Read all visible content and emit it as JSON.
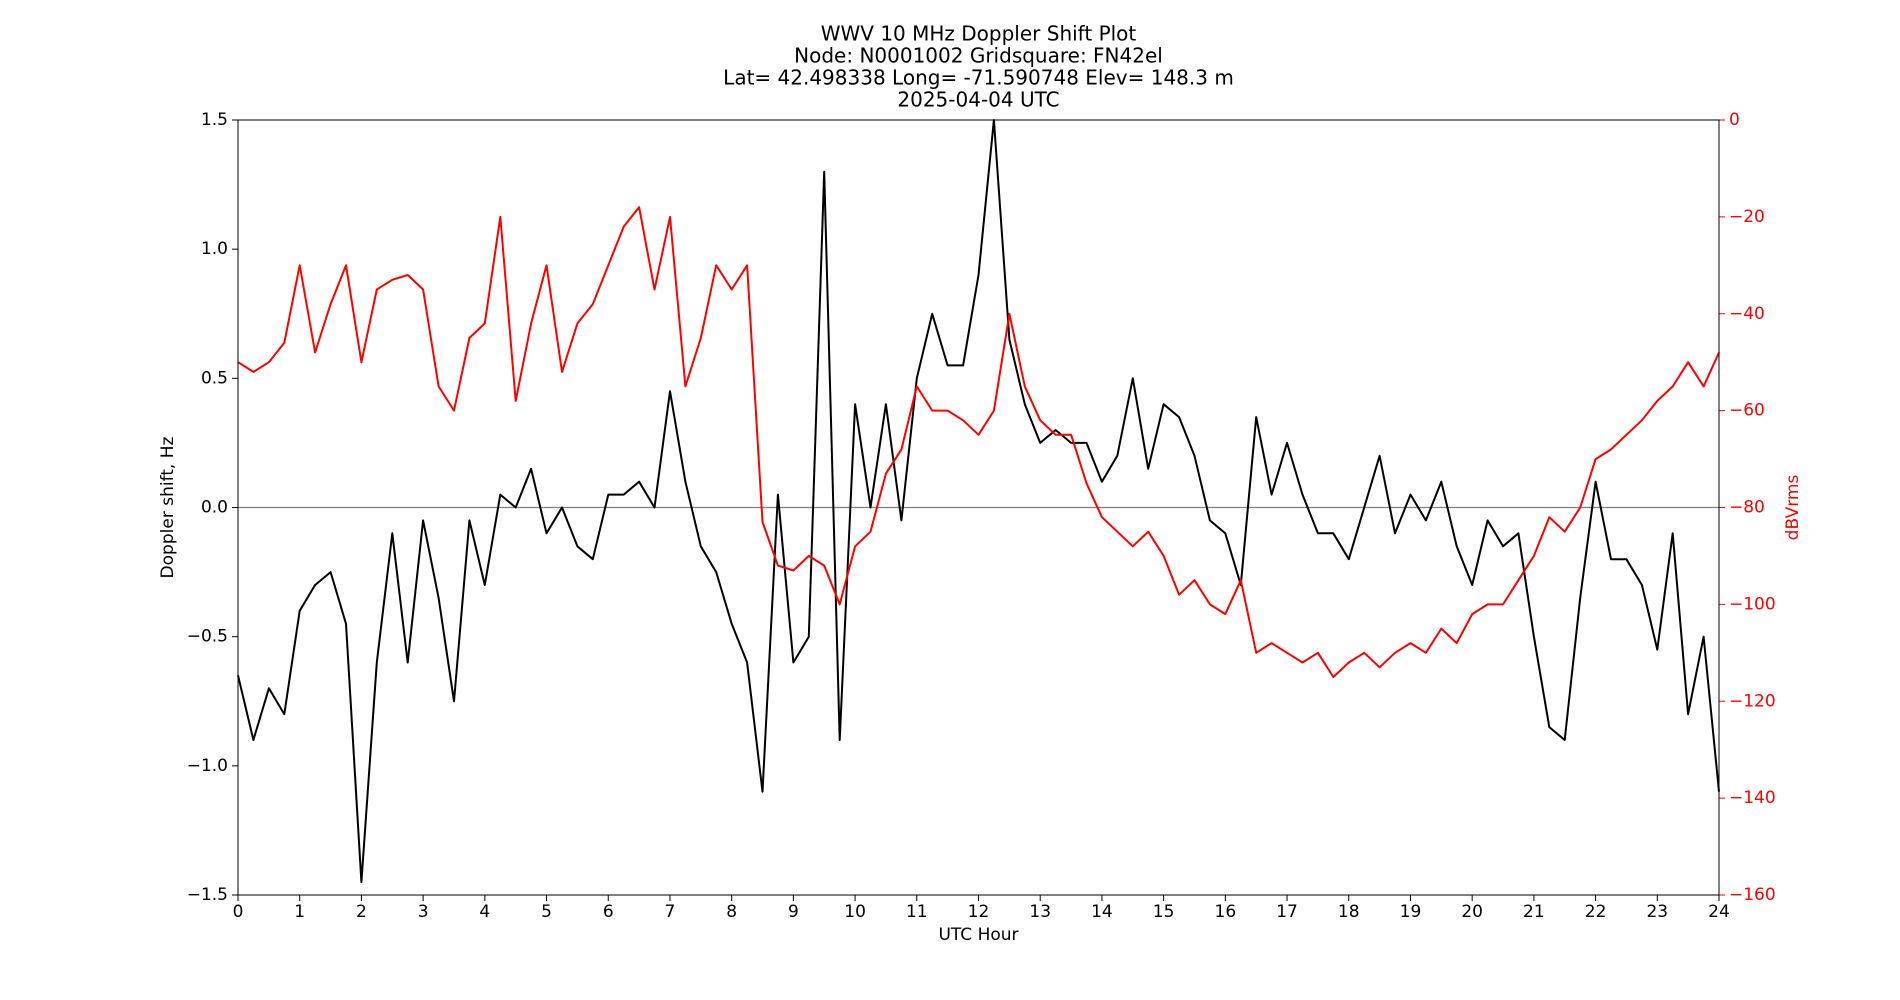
{
  "chart_data": {
    "type": "line",
    "title": [
      "WWV 10 MHz Doppler Shift Plot",
      "Node:  N0001002     Gridsquare:  FN42el",
      "Lat= 42.498338    Long= -71.590748    Elev= 148.3 m",
      "2025-04-04  UTC"
    ],
    "xlabel": "UTC Hour",
    "ylabel": "Doppler shift, Hz",
    "y2label": "dBVrms",
    "x": [
      0,
      0.25,
      0.5,
      0.75,
      1,
      1.25,
      1.5,
      1.75,
      2,
      2.25,
      2.5,
      2.75,
      3,
      3.25,
      3.5,
      3.75,
      4,
      4.25,
      4.5,
      4.75,
      5,
      5.25,
      5.5,
      5.75,
      6,
      6.25,
      6.5,
      6.75,
      7,
      7.25,
      7.5,
      7.75,
      8,
      8.25,
      8.5,
      8.75,
      9,
      9.25,
      9.5,
      9.75,
      10,
      10.25,
      10.5,
      10.75,
      11,
      11.25,
      11.5,
      11.75,
      12,
      12.25,
      12.5,
      12.75,
      13,
      13.25,
      13.5,
      13.75,
      14,
      14.25,
      14.5,
      14.75,
      15,
      15.25,
      15.5,
      15.75,
      16,
      16.25,
      16.5,
      16.75,
      17,
      17.25,
      17.5,
      17.75,
      18,
      18.25,
      18.5,
      18.75,
      19,
      19.25,
      19.5,
      19.75,
      20,
      20.25,
      20.5,
      20.75,
      21,
      21.25,
      21.5,
      21.75,
      22,
      22.25,
      22.5,
      22.75,
      23,
      23.25,
      23.5,
      23.75,
      24
    ],
    "series": [
      {
        "name": "Doppler shift",
        "color": "#000000",
        "values": [
          -0.65,
          -0.9,
          -0.7,
          -0.8,
          -0.4,
          -0.3,
          -0.25,
          -0.45,
          -1.45,
          -0.6,
          -0.1,
          -0.6,
          -0.05,
          -0.35,
          -0.75,
          -0.05,
          -0.3,
          0.05,
          0,
          0.15,
          -0.1,
          0,
          -0.15,
          -0.2,
          0.05,
          0.05,
          0.1,
          0,
          0.45,
          0.1,
          -0.15,
          -0.25,
          -0.45,
          -0.6,
          -1.1,
          0.05,
          -0.6,
          -0.5,
          1.3,
          -0.9,
          0.4,
          0,
          0.4,
          -0.05,
          0.5,
          0.75,
          0.55,
          0.55,
          0.9,
          1.5,
          0.65,
          0.4,
          0.25,
          0.3,
          0.25,
          0.25,
          0.1,
          0.2,
          0.5,
          0.15,
          0.4,
          0.35,
          0.2,
          -0.05,
          -0.1,
          -0.3,
          0.35,
          0.05,
          0.25,
          0.05,
          -0.1,
          -0.1,
          -0.2,
          0,
          0.2,
          -0.1,
          0.05,
          -0.05,
          0.1,
          -0.15,
          -0.3,
          -0.05,
          -0.15,
          -0.1,
          -0.5,
          -0.85,
          -0.9,
          -0.35,
          0.1,
          -0.2,
          -0.2,
          -0.3,
          -0.55,
          -0.1,
          -0.8,
          -0.5,
          -1.1
        ]
      },
      {
        "name": "dBVrms",
        "color": "#ff0000",
        "axis": "y2",
        "values": [
          -50,
          -52,
          -50,
          -46,
          -30,
          -48,
          -38,
          -30,
          -50,
          -35,
          -33,
          -32,
          -35,
          -55,
          -60,
          -45,
          -42,
          -20,
          -58,
          -42,
          -30,
          -52,
          -42,
          -38,
          -30,
          -22,
          -18,
          -35,
          -20,
          -55,
          -45,
          -30,
          -35,
          -30,
          -83,
          -92,
          -93,
          -90,
          -92,
          -100,
          -88,
          -85,
          -73,
          -68,
          -55,
          -60,
          -60,
          -62,
          -65,
          -60,
          -40,
          -55,
          -62,
          -65,
          -65,
          -75,
          -82,
          -85,
          -88,
          -85,
          -90,
          -98,
          -95,
          -100,
          -102,
          -95,
          -110,
          -108,
          -110,
          -112,
          -110,
          -115,
          -112,
          -110,
          -113,
          -110,
          -108,
          -110,
          -105,
          -108,
          -102,
          -100,
          -100,
          -95,
          -90,
          -82,
          -85,
          -80,
          -70,
          -68,
          -65,
          -62,
          -58,
          -55,
          -50,
          -55,
          -48
        ]
      }
    ],
    "xlim": [
      0,
      24
    ],
    "xticks": [
      0,
      1,
      2,
      3,
      4,
      5,
      6,
      7,
      8,
      9,
      10,
      11,
      12,
      13,
      14,
      15,
      16,
      17,
      18,
      19,
      20,
      21,
      22,
      23,
      24
    ],
    "ylim": [
      -1.5,
      1.5
    ],
    "yticks": [
      {
        "value": -1.5,
        "label": "−1.5"
      },
      {
        "value": -1,
        "label": "−1.0"
      },
      {
        "value": -0.5,
        "label": "−0.5"
      },
      {
        "value": 0,
        "label": "0.0"
      },
      0.5,
      {
        "value": 1,
        "label": "1.0"
      },
      1.5
    ],
    "y2lim": [
      -160,
      0
    ],
    "y2ticks": [
      {
        "value": -160,
        "label": "−160"
      },
      {
        "value": -140,
        "label": "−140"
      },
      {
        "value": -120,
        "label": "−120"
      },
      {
        "value": -100,
        "label": "−100"
      },
      {
        "value": -80,
        "label": "−80"
      },
      {
        "value": -60,
        "label": "−60"
      },
      {
        "value": -40,
        "label": "−40"
      },
      {
        "value": -20,
        "label": "−20"
      },
      0
    ],
    "y2color": "#ff0000",
    "zero_line": 0
  }
}
